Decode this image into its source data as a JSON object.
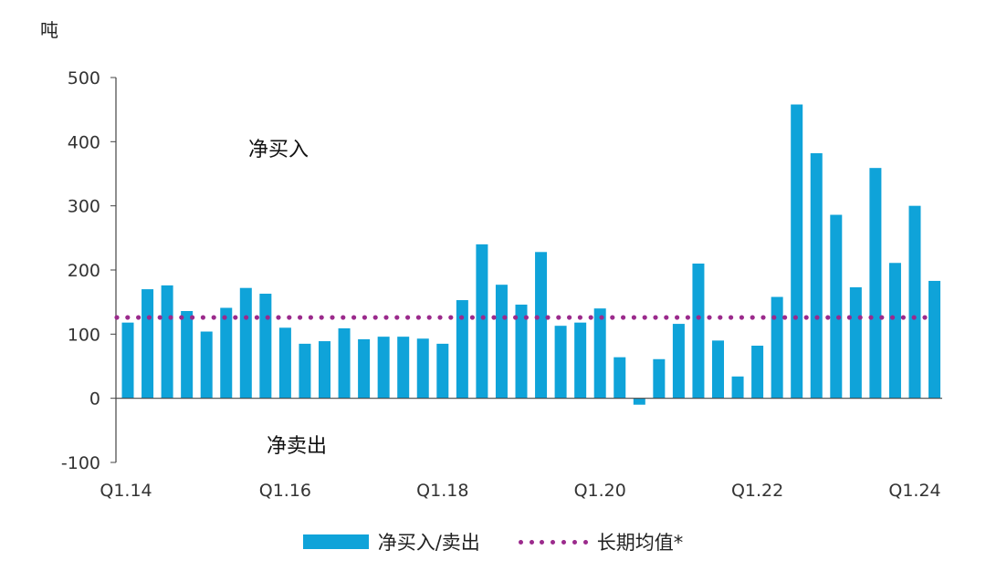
{
  "chart_data": {
    "type": "bar",
    "ylabel": "吨",
    "ylim": [
      -100,
      500
    ],
    "yticks": [
      "500",
      "400",
      "300",
      "200",
      "100",
      "0",
      "-100"
    ],
    "xticks": [
      {
        "label": "Q1.14",
        "index": 0
      },
      {
        "label": "Q1.16",
        "index": 8
      },
      {
        "label": "Q1.18",
        "index": 16
      },
      {
        "label": "Q1.20",
        "index": 24
      },
      {
        "label": "Q1.22",
        "index": 32
      },
      {
        "label": "Q1.24",
        "index": 40
      }
    ],
    "series": [
      {
        "name": "净买入/卖出",
        "color": "#0fa3d9",
        "values": [
          118,
          170,
          176,
          136,
          104,
          141,
          172,
          163,
          110,
          85,
          89,
          109,
          92,
          96,
          96,
          93,
          85,
          153,
          240,
          177,
          146,
          228,
          113,
          118,
          140,
          64,
          -10,
          61,
          116,
          210,
          90,
          34,
          82,
          158,
          458,
          382,
          286,
          173,
          359,
          211,
          300,
          183
        ]
      },
      {
        "name": "长期均值*",
        "color": "#9b2a8c",
        "style": "dotted",
        "value": 126
      }
    ],
    "annotations": [
      "净买入",
      "净卖出"
    ]
  },
  "legend": {
    "bar_label": "净买入/卖出",
    "line_label": "长期均值*"
  }
}
